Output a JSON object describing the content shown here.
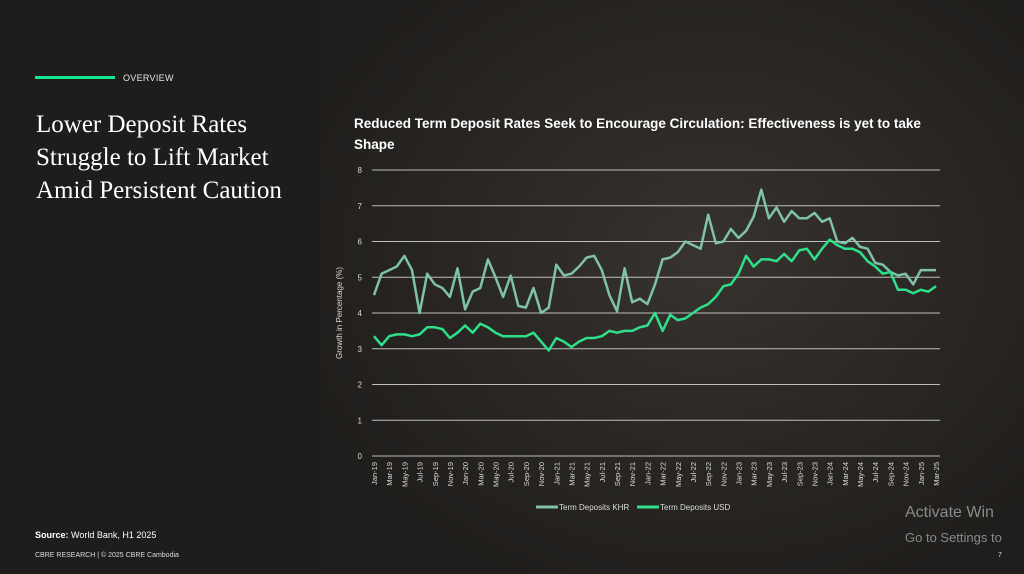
{
  "section_label": "OVERVIEW",
  "headline": "Lower Deposit Rates Struggle to Lift Market Amid Persistent Caution",
  "source_label": "Source:",
  "source_text": "World Bank, H1 2025",
  "footer": "CBRE RESEARCH | © 2025 CBRE Cambodia",
  "page_number": "7",
  "watermark": {
    "line1": "Activate Win",
    "line2": "Go to Settings to"
  },
  "colors": {
    "accent": "#17e88f",
    "khr": "#7fc2a8",
    "usd": "#2ee08a"
  },
  "chart_data": {
    "type": "line",
    "title": "Reduced Term Deposit Rates Seek to Encourage Circulation: Effectiveness is yet to take Shape",
    "ylabel": "Growth in Percentage (%)",
    "xlabel": "",
    "ylim": [
      0,
      8
    ],
    "yticks": [
      "0",
      "1",
      "2",
      "3",
      "4",
      "5",
      "6",
      "7",
      "8"
    ],
    "xtick_labels": [
      "Jan-19",
      "Mar-19",
      "May-19",
      "Jul-19",
      "Sep-19",
      "Nov-19",
      "Jan-20",
      "Mar-20",
      "May-20",
      "Jul-20",
      "Sep-20",
      "Nov-20",
      "Jan-21",
      "Mar-21",
      "May-21",
      "Jul-21",
      "Sep-21",
      "Nov-21",
      "Jan-22",
      "Mar-22",
      "May-22",
      "Jul-22",
      "Sep-22",
      "Nov-22",
      "Jan-23",
      "Mar-23",
      "May-23",
      "Jul-23",
      "Sep-23",
      "Nov-23",
      "Jan-24",
      "Mar-24",
      "May-24",
      "Jul-24",
      "Sep-24",
      "Nov-24",
      "Jan-25",
      "Mar-25"
    ],
    "x_start": "Jan-19",
    "x_end": "Mar-25",
    "frequency": "monthly",
    "grid": true,
    "legend": "bottom",
    "series": [
      {
        "name": "Term Deposits KHR",
        "color": "#7fc2a8",
        "values": [
          4.5,
          5.1,
          5.2,
          5.3,
          5.6,
          5.2,
          4.0,
          5.1,
          4.8,
          4.7,
          4.45,
          5.25,
          4.1,
          4.6,
          4.7,
          5.5,
          5.0,
          4.45,
          5.05,
          4.2,
          4.15,
          4.7,
          4.0,
          4.15,
          5.35,
          5.05,
          5.1,
          5.3,
          5.55,
          5.6,
          5.2,
          4.5,
          4.05,
          5.25,
          4.3,
          4.4,
          4.25,
          4.8,
          5.5,
          5.55,
          5.7,
          6.0,
          5.9,
          5.8,
          6.75,
          5.95,
          6.0,
          6.35,
          6.1,
          6.3,
          6.7,
          7.45,
          6.65,
          6.95,
          6.55,
          6.85,
          6.65,
          6.65,
          6.8,
          6.55,
          6.65,
          6.0,
          5.95,
          6.1,
          5.85,
          5.8,
          5.4,
          5.35,
          5.15,
          5.05,
          5.1,
          4.8,
          5.2,
          5.2,
          5.2
        ]
      },
      {
        "name": "Term Deposits USD",
        "color": "#2ee08a",
        "values": [
          3.35,
          3.1,
          3.35,
          3.4,
          3.4,
          3.35,
          3.4,
          3.6,
          3.6,
          3.55,
          3.3,
          3.45,
          3.65,
          3.45,
          3.7,
          3.6,
          3.45,
          3.35,
          3.35,
          3.35,
          3.35,
          3.45,
          3.2,
          2.95,
          3.3,
          3.2,
          3.05,
          3.2,
          3.3,
          3.3,
          3.35,
          3.5,
          3.45,
          3.5,
          3.5,
          3.6,
          3.65,
          4.0,
          3.5,
          3.95,
          3.8,
          3.85,
          4.0,
          4.15,
          4.25,
          4.45,
          4.75,
          4.8,
          5.1,
          5.6,
          5.3,
          5.5,
          5.5,
          5.45,
          5.65,
          5.45,
          5.75,
          5.8,
          5.5,
          5.8,
          6.05,
          5.9,
          5.8,
          5.8,
          5.7,
          5.45,
          5.3,
          5.1,
          5.15,
          4.65,
          4.65,
          4.55,
          4.65,
          4.6,
          4.75
        ]
      }
    ]
  }
}
